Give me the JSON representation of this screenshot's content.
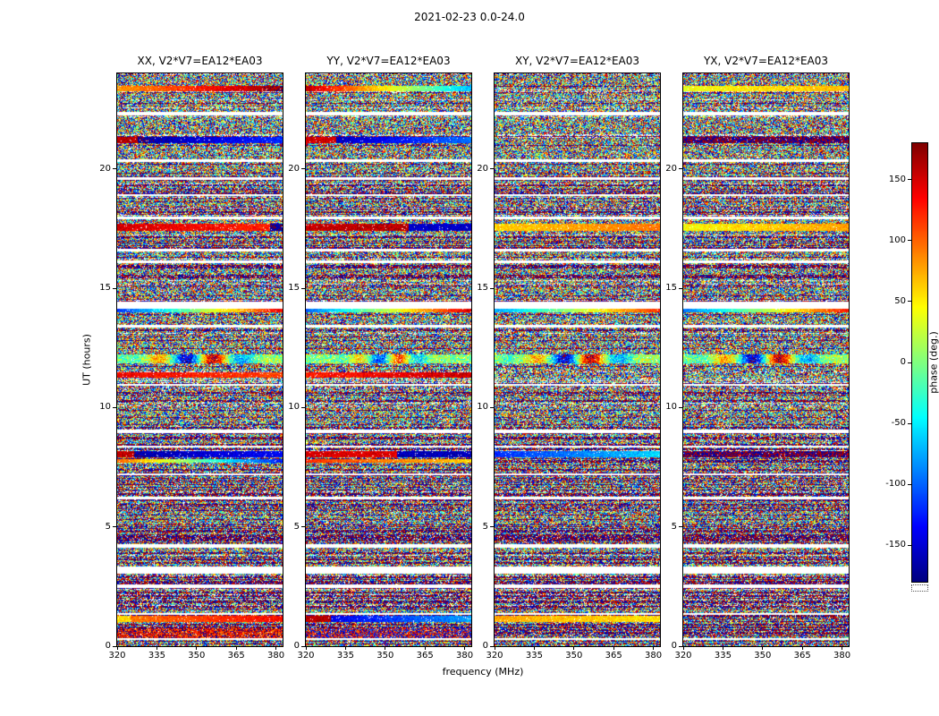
{
  "figure": {
    "suptitle": "2021-02-23 0.0-24.0",
    "xlabel": "frequency (MHz)",
    "ylabel": "UT (hours)"
  },
  "chart_data": {
    "type": "heatmap",
    "title": "2021-02-23 0.0-24.0",
    "xlabel": "frequency (MHz)",
    "ylabel": "UT (hours)",
    "x_range": [
      320,
      382.5
    ],
    "y_range": [
      0,
      24
    ],
    "x_ticks": [
      "320",
      "335",
      "350",
      "365",
      "380"
    ],
    "x_tick_values": [
      320,
      335,
      350,
      365,
      380
    ],
    "y_ticks": [
      "0",
      "5",
      "10",
      "15",
      "20"
    ],
    "y_tick_values": [
      0,
      5,
      10,
      15,
      20
    ],
    "colormap": "jet",
    "grid": false,
    "colorbar": {
      "label": "phase (deg.)",
      "min": -180,
      "max": 180,
      "ticks": [
        "150",
        "100",
        "50",
        "0",
        "-50",
        "-100",
        "-150"
      ],
      "tick_values": [
        150,
        100,
        50,
        0,
        -50,
        -100,
        -150
      ]
    },
    "panels": [
      {
        "title": "XX, V2*V7=EA12*EA03"
      },
      {
        "title": "YY, V2*V7=EA12*EA03"
      },
      {
        "title": "XY, V2*V7=EA12*EA03"
      },
      {
        "title": "YX, V2*V7=EA12*EA03"
      }
    ],
    "content": "Interferometric visibility phase (deg.) vs frequency (MHz) and UT (hours) for baseline V2*V7=EA12*EA03 in four polarization products; mostly random phase noise with flagged white time rows, dark densely-wrapped rows in the lower third, and several coherent fringe bands",
    "render": {
      "structure_seed": 7,
      "panel_seeds": [
        11,
        22,
        33,
        44
      ],
      "white_speckle_prob": 0.06,
      "sparse_row_prob": 0.07,
      "gaps": [
        {
          "hour": 22.3,
          "h": 0.15
        },
        {
          "hour": 20.35,
          "h": 0.1
        },
        {
          "hour": 19.6,
          "h": 0.12
        },
        {
          "hour": 18.9,
          "h": 0.1
        },
        {
          "hour": 17.95,
          "h": 0.1
        },
        {
          "hour": 16.6,
          "h": 0.1
        },
        {
          "hour": 16.1,
          "h": 0.1
        },
        {
          "hour": 14.3,
          "h": 0.3
        },
        {
          "hour": 13.4,
          "h": 0.1
        },
        {
          "hour": 10.95,
          "h": 0.08
        },
        {
          "hour": 9.0,
          "h": 0.12
        },
        {
          "hour": 8.35,
          "h": 0.08
        },
        {
          "hour": 7.2,
          "h": 0.08
        },
        {
          "hour": 6.2,
          "h": 0.12
        },
        {
          "hour": 4.2,
          "h": 0.15
        },
        {
          "hour": 3.2,
          "h": 0.3
        },
        {
          "hour": 2.5,
          "h": 0.15
        },
        {
          "hour": 1.35,
          "h": 0.1
        },
        {
          "hour": 0.3,
          "h": 0.08
        }
      ],
      "dark_regions": [
        {
          "h0": 0,
          "h1": 8.3,
          "p": 0.5
        },
        {
          "h0": 8.3,
          "h1": 11.2,
          "p": 0.2
        },
        {
          "h0": 11.2,
          "h1": 15.3,
          "p": 0.12
        },
        {
          "h0": 15.3,
          "h1": 20.0,
          "p": 0.3
        },
        {
          "h0": 20.0,
          "h1": 24.0,
          "p": 0.12
        }
      ],
      "bands": [
        {
          "hour": 23.35,
          "h": 0.22,
          "panels": [
            {
              "type": "grad",
              "v0": 80,
              "v1": 175
            },
            {
              "type": "grad",
              "v0": 160,
              "v1": -70
            },
            {
              "type": "noise"
            },
            {
              "type": "grad",
              "v0": 40,
              "v1": 70
            }
          ]
        },
        {
          "hour": 21.2,
          "h": 0.28,
          "panels": [
            {
              "type": "grad",
              "v0": -178,
              "v1": -120,
              "leftFrac": 0.12,
              "leftV": 160
            },
            {
              "type": "grad",
              "v0": -175,
              "v1": -95,
              "leftFrac": 0.18,
              "leftV": 150
            },
            {
              "type": "noise"
            },
            {
              "type": "dark"
            }
          ]
        },
        {
          "hour": 17.55,
          "h": 0.3,
          "panels": [
            {
              "type": "grad",
              "v0": 150,
              "v1": 120,
              "rightFrac": 0.08,
              "rightV": -170
            },
            {
              "type": "grad",
              "v0": 155,
              "v1": 165,
              "rightFrac": 0.38,
              "rightV": -155
            },
            {
              "type": "grad",
              "v0": 60,
              "v1": 95
            },
            {
              "type": "grad",
              "v0": 45,
              "v1": 80
            }
          ]
        },
        {
          "hour": 14.05,
          "h": 0.16,
          "panels": [
            {
              "type": "grad",
              "v0": -120,
              "v1": 140
            },
            {
              "type": "grad",
              "v0": -100,
              "v1": 150
            },
            {
              "type": "grad",
              "v0": -80,
              "v1": 120
            },
            {
              "type": "grad",
              "v0": -95,
              "v1": 130
            }
          ]
        },
        {
          "hour": 12.05,
          "h": 0.38,
          "panels": [
            {
              "type": "swirl",
              "amp": 165,
              "width": 0.28
            },
            {
              "type": "swirl",
              "amp": 120,
              "width": 0.2
            },
            {
              "type": "swirl",
              "amp": 165,
              "width": 0.28
            },
            {
              "type": "swirl",
              "amp": 165,
              "width": 0.28
            }
          ]
        },
        {
          "hour": 11.35,
          "h": 0.22,
          "panels": [
            {
              "type": "grad",
              "v0": 140,
              "v1": 110
            },
            {
              "type": "grad",
              "v0": 125,
              "v1": 155
            },
            {
              "type": "noise"
            },
            {
              "type": "noise"
            }
          ]
        },
        {
          "hour": 8.05,
          "h": 0.28,
          "panels": [
            {
              "type": "grad",
              "v0": -170,
              "v1": -135,
              "leftFrac": 0.1,
              "leftV": 155
            },
            {
              "type": "grad",
              "v0": 150,
              "v1": 140,
              "rightFrac": 0.45,
              "rightV": -160
            },
            {
              "type": "grad",
              "v0": -120,
              "v1": -60
            },
            {
              "type": "dark"
            }
          ]
        },
        {
          "hour": 7.75,
          "h": 0.14,
          "panels": [
            {
              "type": "grad",
              "v0": 100,
              "v1": -130
            },
            {
              "type": "grad",
              "v0": 120,
              "v1": 60
            },
            {
              "type": "noise"
            },
            {
              "type": "noise"
            }
          ]
        },
        {
          "hour": 1.15,
          "h": 0.28,
          "panels": [
            {
              "type": "grad",
              "v0": 90,
              "v1": 135,
              "leftFrac": 0.08,
              "leftV": 60
            },
            {
              "type": "grad",
              "v0": -150,
              "v1": -80,
              "leftFrac": 0.15,
              "leftV": 160
            },
            {
              "type": "grad",
              "v0": 75,
              "v1": 55
            },
            {
              "type": "noise"
            }
          ]
        },
        {
          "hour": 0.5,
          "h": 0.5,
          "panels": [
            {
              "type": "bias",
              "center": 140,
              "spread": 65
            },
            {
              "type": "bias",
              "center": 170,
              "spread": 100
            },
            {
              "type": "noise"
            },
            {
              "type": "noise"
            }
          ]
        }
      ]
    }
  }
}
